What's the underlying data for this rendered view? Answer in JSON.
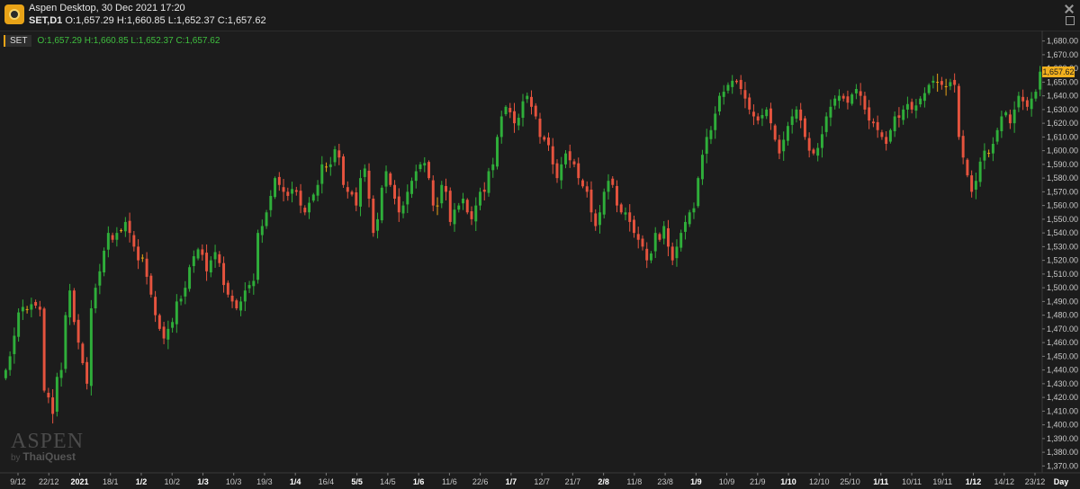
{
  "window": {
    "title": "Aspen Desktop, 30 Dec 2021 17:20",
    "symbol": "SET,D1",
    "ohlc": "O:1,657.29 H:1,660.85 L:1,652.37 C:1,657.62"
  },
  "legend": {
    "tag": "SET",
    "ohlc": "O:1,657.29 H:1,660.85 L:1,652.37 C:1,657.62"
  },
  "watermark": {
    "brand": "ASPEN",
    "by": "by",
    "vendor": "ThaiQuest"
  },
  "colors": {
    "up": "#2fae3a",
    "down": "#e5533e",
    "wick_up": "#2fae3a",
    "wick_down": "#e5533e",
    "doji": "#e8a317",
    "grid": "#2e2e2e",
    "last_price_bg": "#f2b01e"
  },
  "chart_data": {
    "type": "candlestick",
    "timeframe_label": "Day",
    "last_price_label": "1,657.62",
    "y_ticks": [
      "1,680.00",
      "1,670.00",
      "1,660.00",
      "1,650.00",
      "1,640.00",
      "1,630.00",
      "1,620.00",
      "1,610.00",
      "1,600.00",
      "1,590.00",
      "1,580.00",
      "1,570.00",
      "1,560.00",
      "1,550.00",
      "1,540.00",
      "1,530.00",
      "1,520.00",
      "1,510.00",
      "1,500.00",
      "1,490.00",
      "1,480.00",
      "1,470.00",
      "1,460.00",
      "1,450.00",
      "1,440.00",
      "1,430.00",
      "1,420.00",
      "1,410.00",
      "1,400.00",
      "1,390.00",
      "1,380.00",
      "1,370.00"
    ],
    "ylim": [
      1365,
      1685
    ],
    "x_labels": [
      {
        "text": "9/12",
        "bold": false
      },
      {
        "text": "22/12",
        "bold": false
      },
      {
        "text": "2021",
        "bold": true
      },
      {
        "text": "18/1",
        "bold": false
      },
      {
        "text": "1/2",
        "bold": true
      },
      {
        "text": "10/2",
        "bold": false
      },
      {
        "text": "1/3",
        "bold": true
      },
      {
        "text": "10/3",
        "bold": false
      },
      {
        "text": "19/3",
        "bold": false
      },
      {
        "text": "1/4",
        "bold": true
      },
      {
        "text": "16/4",
        "bold": false
      },
      {
        "text": "5/5",
        "bold": true
      },
      {
        "text": "14/5",
        "bold": false
      },
      {
        "text": "1/6",
        "bold": true
      },
      {
        "text": "11/6",
        "bold": false
      },
      {
        "text": "22/6",
        "bold": false
      },
      {
        "text": "1/7",
        "bold": true
      },
      {
        "text": "12/7",
        "bold": false
      },
      {
        "text": "21/7",
        "bold": false
      },
      {
        "text": "2/8",
        "bold": true
      },
      {
        "text": "11/8",
        "bold": false
      },
      {
        "text": "23/8",
        "bold": false
      },
      {
        "text": "1/9",
        "bold": true
      },
      {
        "text": "10/9",
        "bold": false
      },
      {
        "text": "21/9",
        "bold": false
      },
      {
        "text": "1/10",
        "bold": true
      },
      {
        "text": "12/10",
        "bold": false
      },
      {
        "text": "25/10",
        "bold": false
      },
      {
        "text": "1/11",
        "bold": true
      },
      {
        "text": "10/11",
        "bold": false
      },
      {
        "text": "19/11",
        "bold": false
      },
      {
        "text": "1/12",
        "bold": true
      },
      {
        "text": "14/12",
        "bold": false
      },
      {
        "text": "23/12",
        "bold": false
      }
    ],
    "close": [
      1440,
      1450,
      1465,
      1482,
      1486,
      1484,
      1488,
      1487,
      1484,
      1425,
      1420,
      1408,
      1435,
      1440,
      1480,
      1498,
      1475,
      1460,
      1445,
      1430,
      1485,
      1500,
      1512,
      1527,
      1540,
      1535,
      1540,
      1542,
      1548,
      1540,
      1530,
      1520,
      1522,
      1508,
      1495,
      1480,
      1470,
      1463,
      1470,
      1475,
      1490,
      1492,
      1500,
      1515,
      1523,
      1528,
      1524,
      1512,
      1520,
      1526,
      1518,
      1502,
      1495,
      1490,
      1485,
      1490,
      1498,
      1502,
      1505,
      1540,
      1545,
      1555,
      1567,
      1580,
      1575,
      1570,
      1567,
      1572,
      1570,
      1560,
      1555,
      1562,
      1568,
      1575,
      1590,
      1588,
      1590,
      1601,
      1595,
      1575,
      1570,
      1568,
      1560,
      1580,
      1587,
      1565,
      1540,
      1550,
      1573,
      1585,
      1575,
      1565,
      1555,
      1560,
      1570,
      1578,
      1585,
      1590,
      1591,
      1580,
      1560,
      1560,
      1575,
      1570,
      1548,
      1557,
      1560,
      1565,
      1555,
      1550,
      1560,
      1570,
      1570,
      1585,
      1590,
      1610,
      1625,
      1632,
      1628,
      1620,
      1624,
      1636,
      1640,
      1632,
      1625,
      1610,
      1608,
      1604,
      1590,
      1580,
      1590,
      1598,
      1593,
      1590,
      1580,
      1574,
      1570,
      1555,
      1545,
      1555,
      1570,
      1578,
      1575,
      1560,
      1555,
      1555,
      1548,
      1540,
      1535,
      1530,
      1520,
      1525,
      1540,
      1535,
      1545,
      1530,
      1520,
      1530,
      1540,
      1548,
      1555,
      1558,
      1580,
      1597,
      1610,
      1615,
      1627,
      1640,
      1643,
      1648,
      1651,
      1650,
      1645,
      1638,
      1630,
      1625,
      1622,
      1626,
      1630,
      1620,
      1608,
      1598,
      1608,
      1618,
      1625,
      1630,
      1622,
      1610,
      1600,
      1598,
      1602,
      1612,
      1625,
      1632,
      1638,
      1640,
      1638,
      1635,
      1641,
      1645,
      1640,
      1630,
      1622,
      1620,
      1615,
      1610,
      1605,
      1615,
      1625,
      1624,
      1630,
      1634,
      1630,
      1633,
      1638,
      1642,
      1648,
      1651,
      1650,
      1648,
      1647,
      1650,
      1648,
      1610,
      1595,
      1582,
      1570,
      1578,
      1592,
      1600,
      1598,
      1605,
      1615,
      1625,
      1628,
      1620,
      1630,
      1640,
      1636,
      1632,
      1638,
      1643,
      1657.62
    ]
  }
}
